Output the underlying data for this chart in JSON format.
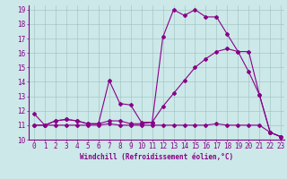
{
  "xlabel": "Windchill (Refroidissement éolien,°C)",
  "bg_color": "#cce8e8",
  "line_color": "#880088",
  "xmin": -0.5,
  "xmax": 23.3,
  "ymin": 10,
  "ymax": 19.3,
  "line1_x": [
    0,
    1,
    2,
    3,
    4,
    5,
    6,
    7,
    8,
    9,
    10,
    11,
    12,
    13,
    14,
    15,
    16,
    17,
    18,
    19,
    20,
    21,
    22,
    23
  ],
  "line1_y": [
    11.8,
    11.0,
    11.3,
    11.4,
    11.3,
    11.1,
    11.1,
    14.1,
    12.5,
    12.4,
    11.2,
    11.2,
    17.1,
    19.0,
    18.6,
    19.0,
    18.5,
    18.5,
    17.3,
    16.1,
    14.7,
    13.1,
    10.5,
    10.2
  ],
  "line2_x": [
    0,
    1,
    2,
    3,
    4,
    5,
    6,
    7,
    8,
    9,
    10,
    11,
    12,
    13,
    14,
    15,
    16,
    17,
    18,
    19,
    20,
    21,
    22,
    23
  ],
  "line2_y": [
    11.0,
    11.0,
    11.3,
    11.4,
    11.3,
    11.1,
    11.1,
    11.3,
    11.3,
    11.1,
    11.1,
    11.2,
    12.3,
    13.2,
    14.1,
    15.0,
    15.6,
    16.1,
    16.3,
    16.1,
    16.1,
    13.1,
    10.5,
    10.2
  ],
  "line3_x": [
    0,
    1,
    2,
    3,
    4,
    5,
    6,
    7,
    8,
    9,
    10,
    11,
    12,
    13,
    14,
    15,
    16,
    17,
    18,
    19,
    20,
    21,
    22,
    23
  ],
  "line3_y": [
    11.0,
    11.0,
    11.0,
    11.0,
    11.0,
    11.0,
    11.0,
    11.1,
    11.0,
    11.0,
    11.0,
    11.0,
    11.0,
    11.0,
    11.0,
    11.0,
    11.0,
    11.1,
    11.0,
    11.0,
    11.0,
    11.0,
    10.5,
    10.2
  ],
  "xticks": [
    0,
    1,
    2,
    3,
    4,
    5,
    6,
    7,
    8,
    9,
    10,
    11,
    12,
    13,
    14,
    15,
    16,
    17,
    18,
    19,
    20,
    21,
    22,
    23
  ],
  "yticks": [
    10,
    11,
    12,
    13,
    14,
    15,
    16,
    17,
    18,
    19
  ],
  "font_size": 5.5,
  "marker": "D",
  "markersize": 2.0,
  "linewidth": 0.8
}
